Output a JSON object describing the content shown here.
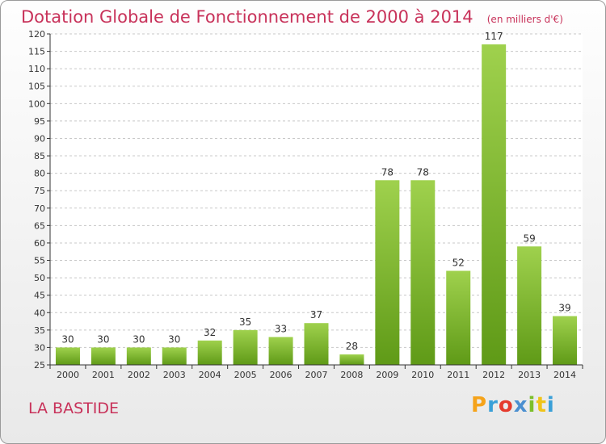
{
  "header": {
    "title": "Dotation Globale de Fonctionnement de 2000 à 2014",
    "unit": "(en milliers d'€)"
  },
  "footer": {
    "place": "LA BASTIDE"
  },
  "logo": {
    "text": "Proxiti",
    "colors": [
      "#f5a31a",
      "#3aa0d8",
      "#e53a2c",
      "#4b8fd0",
      "#7cbf2a",
      "#f0c419",
      "#3aa0d8"
    ]
  },
  "colors": {
    "bar_light": "#9fd14d",
    "bar_dark": "#5f9a17",
    "grid": "#c8c8c8",
    "axis": "#333333",
    "text": "#333333"
  },
  "chart_data": {
    "type": "bar",
    "title": "Dotation Globale de Fonctionnement de 2000 à 2014",
    "subtitle": "(en milliers d'€)",
    "xlabel": "",
    "ylabel": "",
    "categories": [
      "2000",
      "2001",
      "2002",
      "2003",
      "2004",
      "2005",
      "2006",
      "2007",
      "2008",
      "2009",
      "2010",
      "2011",
      "2012",
      "2013",
      "2014"
    ],
    "values": [
      30,
      30,
      30,
      30,
      32,
      35,
      33,
      37,
      28,
      78,
      78,
      52,
      117,
      59,
      39
    ],
    "ylim": [
      25,
      120
    ],
    "ytick_step": 5,
    "grid": true,
    "legend": "none",
    "data_labels": true
  }
}
